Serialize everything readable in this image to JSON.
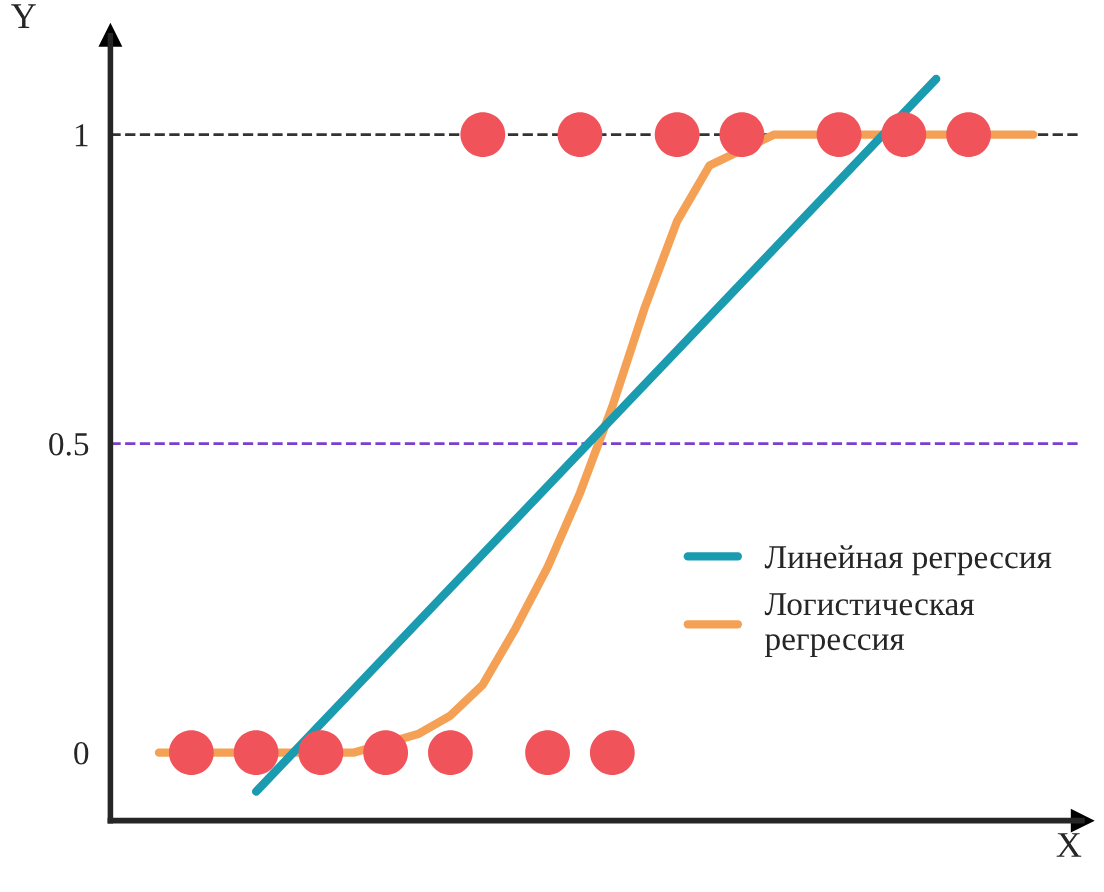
{
  "chart_data": {
    "type": "scatter",
    "xlabel": "X",
    "ylabel": "Y",
    "categories": [
      null,
      null,
      null,
      null,
      null,
      null,
      null,
      null,
      null,
      null,
      null,
      null,
      null,
      null,
      null,
      null,
      null,
      null,
      null,
      null,
      null,
      null,
      null,
      null,
      null,
      null,
      null,
      null,
      null,
      null
    ],
    "ylim": [
      -0.11,
      1.16
    ],
    "yticks": [
      0,
      0.5,
      1
    ],
    "tick_labels": "y",
    "grid": false,
    "legend": "right",
    "series": [
      {
        "color": "#f0545a",
        "marker": "circle",
        "values": [
          null,
          null,
          0,
          null,
          0,
          null,
          0,
          null,
          0,
          null,
          0,
          1,
          null,
          0,
          1,
          0,
          null,
          1,
          null,
          1,
          null,
          null,
          1,
          null,
          1,
          null,
          1,
          null,
          null,
          null
        ]
      },
      {
        "type": "line",
        "name": "Логистическая\nрегрессия",
        "color": "#f4a155",
        "values": [
          null,
          0,
          0,
          0,
          0,
          0,
          0,
          0,
          null,
          0.03,
          0.06,
          0.11,
          0.2,
          0.3,
          0.42,
          0.56,
          0.72,
          0.86,
          0.95,
          null,
          1,
          1,
          1,
          1,
          1,
          1,
          1,
          1,
          1,
          null
        ]
      },
      {
        "type": "line",
        "name": "Линейная регрессия",
        "color": "#1a9bb0",
        "values": [
          null,
          null,
          null,
          null,
          -0.063,
          null,
          null,
          null,
          null,
          null,
          null,
          null,
          null,
          null,
          null,
          null,
          null,
          null,
          null,
          null,
          null,
          null,
          null,
          null,
          null,
          1.09,
          null,
          null,
          null,
          null
        ]
      }
    ],
    "ref_lines": [
      {
        "axis": "y",
        "value": 1,
        "color": "#333333",
        "line_style": "dashed"
      },
      {
        "axis": "y",
        "value": 0.5,
        "color": "#7b3fd0",
        "line_style": "dashed"
      }
    ]
  }
}
